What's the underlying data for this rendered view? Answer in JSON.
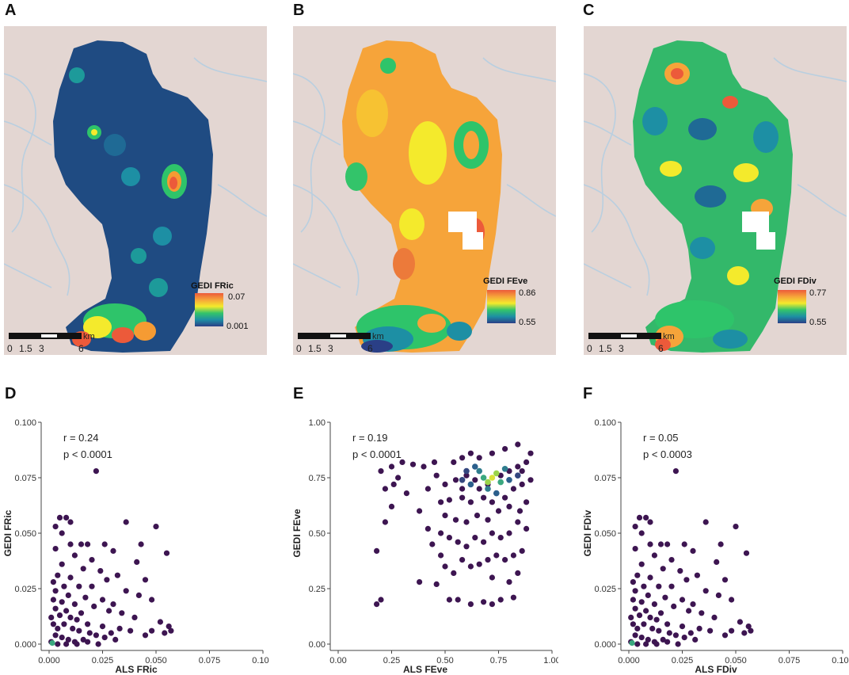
{
  "colors": {
    "terrain": "#e3d6d2",
    "river": "#b9cfe0",
    "hex_low": "#3d1551",
    "hex_mid": "#2f7d8e",
    "hex_high": "#d9e23a",
    "ramp": [
      "#2a3f86",
      "#1d8fa4",
      "#33c46a",
      "#f4ea2c",
      "#f6a43a",
      "#ec5a3a"
    ]
  },
  "maps": [
    {
      "letter": "A",
      "legend_title": "GEDI FRic",
      "legend_max": "0.07",
      "legend_min": "0.001",
      "scale_unit": "km",
      "scale_ticks": [
        "0",
        "1.5",
        "3",
        "6"
      ]
    },
    {
      "letter": "B",
      "legend_title": "GEDI FEve",
      "legend_max": "0.86",
      "legend_min": "0.55",
      "scale_unit": "km",
      "scale_ticks": [
        "0",
        "1.5",
        "3",
        "6"
      ]
    },
    {
      "letter": "C",
      "legend_title": "GEDI FDiv",
      "legend_max": "0.77",
      "legend_min": "0.55",
      "scale_unit": "km",
      "scale_ticks": [
        "0",
        "1.5",
        "3",
        "6"
      ]
    }
  ],
  "chart_data": [
    {
      "type": "scatter",
      "letter": "D",
      "xlabel": "ALS FRic",
      "ylabel": "GEDI FRic",
      "xlim": [
        0,
        0.1
      ],
      "ylim": [
        0,
        0.1
      ],
      "xticks": [
        "0.000",
        "0.025",
        "0.050",
        "0.075",
        "0.100"
      ],
      "yticks": [
        "0.000",
        "0.025",
        "0.050",
        "0.075",
        "0.100"
      ],
      "annotation_r": "r = 0.24",
      "annotation_p": "p < 0.0001",
      "points": [
        [
          0.022,
          0.078
        ],
        [
          0.036,
          0.055
        ],
        [
          0.05,
          0.053
        ],
        [
          0.055,
          0.041
        ],
        [
          0.005,
          0.057
        ],
        [
          0.008,
          0.057
        ],
        [
          0.01,
          0.055
        ],
        [
          0.003,
          0.053
        ],
        [
          0.006,
          0.05
        ],
        [
          0.01,
          0.045
        ],
        [
          0.015,
          0.045
        ],
        [
          0.018,
          0.045
        ],
        [
          0.026,
          0.045
        ],
        [
          0.03,
          0.042
        ],
        [
          0.043,
          0.045
        ],
        [
          0.003,
          0.043
        ],
        [
          0.012,
          0.04
        ],
        [
          0.02,
          0.038
        ],
        [
          0.041,
          0.037
        ],
        [
          0.006,
          0.036
        ],
        [
          0.016,
          0.034
        ],
        [
          0.024,
          0.033
        ],
        [
          0.032,
          0.031
        ],
        [
          0.004,
          0.031
        ],
        [
          0.01,
          0.03
        ],
        [
          0.027,
          0.029
        ],
        [
          0.045,
          0.029
        ],
        [
          0.002,
          0.028
        ],
        [
          0.007,
          0.026
        ],
        [
          0.014,
          0.026
        ],
        [
          0.02,
          0.026
        ],
        [
          0.036,
          0.024
        ],
        [
          0.042,
          0.022
        ],
        [
          0.048,
          0.02
        ],
        [
          0.003,
          0.024
        ],
        [
          0.009,
          0.022
        ],
        [
          0.017,
          0.021
        ],
        [
          0.025,
          0.02
        ],
        [
          0.03,
          0.018
        ],
        [
          0.002,
          0.02
        ],
        [
          0.006,
          0.019
        ],
        [
          0.012,
          0.018
        ],
        [
          0.021,
          0.017
        ],
        [
          0.028,
          0.015
        ],
        [
          0.034,
          0.014
        ],
        [
          0.04,
          0.012
        ],
        [
          0.003,
          0.016
        ],
        [
          0.008,
          0.015
        ],
        [
          0.015,
          0.014
        ],
        [
          0.052,
          0.01
        ],
        [
          0.056,
          0.008
        ],
        [
          0.057,
          0.006
        ],
        [
          0.054,
          0.005
        ],
        [
          0.048,
          0.006
        ],
        [
          0.045,
          0.004
        ],
        [
          0.038,
          0.006
        ],
        [
          0.033,
          0.007
        ],
        [
          0.029,
          0.005
        ],
        [
          0.025,
          0.008
        ],
        [
          0.018,
          0.009
        ],
        [
          0.013,
          0.011
        ],
        [
          0.01,
          0.012
        ],
        [
          0.005,
          0.013
        ],
        [
          0.001,
          0.012
        ],
        [
          0.002,
          0.009
        ],
        [
          0.004,
          0.007
        ],
        [
          0.007,
          0.009
        ],
        [
          0.011,
          0.007
        ],
        [
          0.014,
          0.006
        ],
        [
          0.019,
          0.005
        ],
        [
          0.022,
          0.004
        ],
        [
          0.026,
          0.003
        ],
        [
          0.031,
          0.002
        ],
        [
          0.003,
          0.004
        ],
        [
          0.006,
          0.003
        ],
        [
          0.009,
          0.002
        ],
        [
          0.012,
          0.001
        ],
        [
          0.016,
          0.002
        ],
        [
          0.001,
          0.001
        ],
        [
          0.004,
          0.0
        ],
        [
          0.008,
          0.0
        ],
        [
          0.013,
          0.0
        ],
        [
          0.018,
          0.001
        ],
        [
          0.023,
          0.0
        ]
      ]
    },
    {
      "type": "scatter",
      "letter": "E",
      "xlabel": "ALS FEve",
      "ylabel": "GEDI FEve",
      "xlim": [
        0,
        1
      ],
      "ylim": [
        0,
        1
      ],
      "xticks": [
        "0.00",
        "0.25",
        "0.50",
        "0.75",
        "1.00"
      ],
      "yticks": [
        "0.00",
        "0.25",
        "0.50",
        "0.75",
        "1.00"
      ],
      "annotation_r": "r = 0.19",
      "annotation_p": "p < 0.0001",
      "points": [
        [
          0.18,
          0.18
        ],
        [
          0.2,
          0.2
        ],
        [
          0.38,
          0.28
        ],
        [
          0.46,
          0.27
        ],
        [
          0.52,
          0.2
        ],
        [
          0.56,
          0.2
        ],
        [
          0.62,
          0.18
        ],
        [
          0.68,
          0.19
        ],
        [
          0.72,
          0.18
        ],
        [
          0.76,
          0.2
        ],
        [
          0.82,
          0.21
        ],
        [
          0.18,
          0.42
        ],
        [
          0.22,
          0.55
        ],
        [
          0.25,
          0.62
        ],
        [
          0.22,
          0.7
        ],
        [
          0.28,
          0.75
        ],
        [
          0.2,
          0.78
        ],
        [
          0.25,
          0.8
        ],
        [
          0.3,
          0.82
        ],
        [
          0.35,
          0.81
        ],
        [
          0.4,
          0.8
        ],
        [
          0.45,
          0.82
        ],
        [
          0.26,
          0.72
        ],
        [
          0.32,
          0.68
        ],
        [
          0.38,
          0.6
        ],
        [
          0.42,
          0.52
        ],
        [
          0.44,
          0.45
        ],
        [
          0.48,
          0.4
        ],
        [
          0.5,
          0.35
        ],
        [
          0.54,
          0.32
        ],
        [
          0.58,
          0.38
        ],
        [
          0.62,
          0.35
        ],
        [
          0.66,
          0.36
        ],
        [
          0.7,
          0.38
        ],
        [
          0.74,
          0.4
        ],
        [
          0.78,
          0.38
        ],
        [
          0.82,
          0.4
        ],
        [
          0.86,
          0.42
        ],
        [
          0.72,
          0.3
        ],
        [
          0.8,
          0.28
        ],
        [
          0.84,
          0.32
        ],
        [
          0.48,
          0.5
        ],
        [
          0.52,
          0.48
        ],
        [
          0.56,
          0.46
        ],
        [
          0.6,
          0.44
        ],
        [
          0.64,
          0.48
        ],
        [
          0.68,
          0.46
        ],
        [
          0.72,
          0.5
        ],
        [
          0.76,
          0.48
        ],
        [
          0.8,
          0.5
        ],
        [
          0.84,
          0.55
        ],
        [
          0.88,
          0.52
        ],
        [
          0.5,
          0.58
        ],
        [
          0.55,
          0.56
        ],
        [
          0.6,
          0.55
        ],
        [
          0.65,
          0.58
        ],
        [
          0.7,
          0.56
        ],
        [
          0.75,
          0.6
        ],
        [
          0.8,
          0.62
        ],
        [
          0.85,
          0.6
        ],
        [
          0.88,
          0.64
        ],
        [
          0.52,
          0.65
        ],
        [
          0.58,
          0.66
        ],
        [
          0.62,
          0.64
        ],
        [
          0.68,
          0.66
        ],
        [
          0.74,
          0.68
        ],
        [
          0.78,
          0.66
        ],
        [
          0.82,
          0.7
        ],
        [
          0.86,
          0.72
        ],
        [
          0.9,
          0.74
        ],
        [
          0.5,
          0.72
        ],
        [
          0.55,
          0.74
        ],
        [
          0.6,
          0.76
        ],
        [
          0.64,
          0.74
        ],
        [
          0.7,
          0.72
        ],
        [
          0.76,
          0.76
        ],
        [
          0.8,
          0.78
        ],
        [
          0.84,
          0.8
        ],
        [
          0.88,
          0.82
        ],
        [
          0.54,
          0.82
        ],
        [
          0.58,
          0.84
        ],
        [
          0.62,
          0.86
        ],
        [
          0.66,
          0.84
        ],
        [
          0.72,
          0.86
        ],
        [
          0.78,
          0.88
        ],
        [
          0.84,
          0.9
        ],
        [
          0.9,
          0.86
        ],
        [
          0.46,
          0.76
        ],
        [
          0.42,
          0.7
        ],
        [
          0.48,
          0.64
        ],
        [
          0.86,
          0.78
        ],
        [
          0.66,
          0.7
        ],
        [
          0.72,
          0.64
        ],
        [
          0.58,
          0.7
        ]
      ],
      "hot": [
        [
          0.72,
          0.75,
          "#d9e23a"
        ],
        [
          0.7,
          0.73,
          "#9ad44a"
        ],
        [
          0.74,
          0.77,
          "#9ad44a"
        ],
        [
          0.68,
          0.75,
          "#3aa87f"
        ],
        [
          0.76,
          0.73,
          "#3aa87f"
        ],
        [
          0.66,
          0.78,
          "#2f7d8e"
        ],
        [
          0.78,
          0.79,
          "#2f7d8e"
        ],
        [
          0.7,
          0.7,
          "#2f7d8e"
        ],
        [
          0.62,
          0.72,
          "#2b5f8c"
        ],
        [
          0.8,
          0.74,
          "#2b5f8c"
        ],
        [
          0.64,
          0.8,
          "#2b5f8c"
        ],
        [
          0.84,
          0.76,
          "#34477f"
        ],
        [
          0.6,
          0.78,
          "#34477f"
        ],
        [
          0.58,
          0.74,
          "#34477f"
        ],
        [
          0.74,
          0.68,
          "#2b5f8c"
        ]
      ]
    },
    {
      "type": "scatter",
      "letter": "F",
      "xlabel": "ALS FDiv",
      "ylabel": "GEDI FDiv",
      "xlim": [
        0,
        0.1
      ],
      "ylim": [
        0,
        0.1
      ],
      "xticks": [
        "0.000",
        "0.025",
        "0.050",
        "0.075",
        "0.100"
      ],
      "yticks": [
        "0.000",
        "0.025",
        "0.050",
        "0.075",
        "0.100"
      ],
      "annotation_r": "r = 0.05",
      "annotation_p": "p <  0.0003",
      "points": [
        [
          0.022,
          0.078
        ],
        [
          0.036,
          0.055
        ],
        [
          0.05,
          0.053
        ],
        [
          0.055,
          0.041
        ],
        [
          0.005,
          0.057
        ],
        [
          0.008,
          0.057
        ],
        [
          0.01,
          0.055
        ],
        [
          0.003,
          0.053
        ],
        [
          0.006,
          0.05
        ],
        [
          0.01,
          0.045
        ],
        [
          0.015,
          0.045
        ],
        [
          0.018,
          0.045
        ],
        [
          0.026,
          0.045
        ],
        [
          0.03,
          0.042
        ],
        [
          0.043,
          0.045
        ],
        [
          0.003,
          0.043
        ],
        [
          0.012,
          0.04
        ],
        [
          0.02,
          0.038
        ],
        [
          0.041,
          0.037
        ],
        [
          0.006,
          0.036
        ],
        [
          0.016,
          0.034
        ],
        [
          0.024,
          0.033
        ],
        [
          0.032,
          0.031
        ],
        [
          0.004,
          0.031
        ],
        [
          0.01,
          0.03
        ],
        [
          0.027,
          0.029
        ],
        [
          0.045,
          0.029
        ],
        [
          0.002,
          0.028
        ],
        [
          0.007,
          0.026
        ],
        [
          0.014,
          0.026
        ],
        [
          0.02,
          0.026
        ],
        [
          0.036,
          0.024
        ],
        [
          0.042,
          0.022
        ],
        [
          0.048,
          0.02
        ],
        [
          0.003,
          0.024
        ],
        [
          0.009,
          0.022
        ],
        [
          0.017,
          0.021
        ],
        [
          0.025,
          0.02
        ],
        [
          0.03,
          0.018
        ],
        [
          0.002,
          0.02
        ],
        [
          0.006,
          0.019
        ],
        [
          0.012,
          0.018
        ],
        [
          0.021,
          0.017
        ],
        [
          0.028,
          0.015
        ],
        [
          0.034,
          0.014
        ],
        [
          0.04,
          0.012
        ],
        [
          0.003,
          0.016
        ],
        [
          0.008,
          0.015
        ],
        [
          0.015,
          0.014
        ],
        [
          0.052,
          0.01
        ],
        [
          0.056,
          0.008
        ],
        [
          0.057,
          0.006
        ],
        [
          0.054,
          0.005
        ],
        [
          0.048,
          0.006
        ],
        [
          0.045,
          0.004
        ],
        [
          0.038,
          0.006
        ],
        [
          0.033,
          0.007
        ],
        [
          0.029,
          0.005
        ],
        [
          0.025,
          0.008
        ],
        [
          0.018,
          0.009
        ],
        [
          0.013,
          0.011
        ],
        [
          0.01,
          0.012
        ],
        [
          0.005,
          0.013
        ],
        [
          0.001,
          0.012
        ],
        [
          0.002,
          0.009
        ],
        [
          0.004,
          0.007
        ],
        [
          0.007,
          0.009
        ],
        [
          0.011,
          0.007
        ],
        [
          0.014,
          0.006
        ],
        [
          0.019,
          0.005
        ],
        [
          0.022,
          0.004
        ],
        [
          0.026,
          0.003
        ],
        [
          0.031,
          0.002
        ],
        [
          0.003,
          0.004
        ],
        [
          0.006,
          0.003
        ],
        [
          0.009,
          0.002
        ],
        [
          0.012,
          0.001
        ],
        [
          0.016,
          0.002
        ],
        [
          0.001,
          0.001
        ],
        [
          0.004,
          0.0
        ],
        [
          0.008,
          0.0
        ],
        [
          0.013,
          0.0
        ],
        [
          0.018,
          0.001
        ],
        [
          0.023,
          0.0
        ]
      ]
    }
  ]
}
